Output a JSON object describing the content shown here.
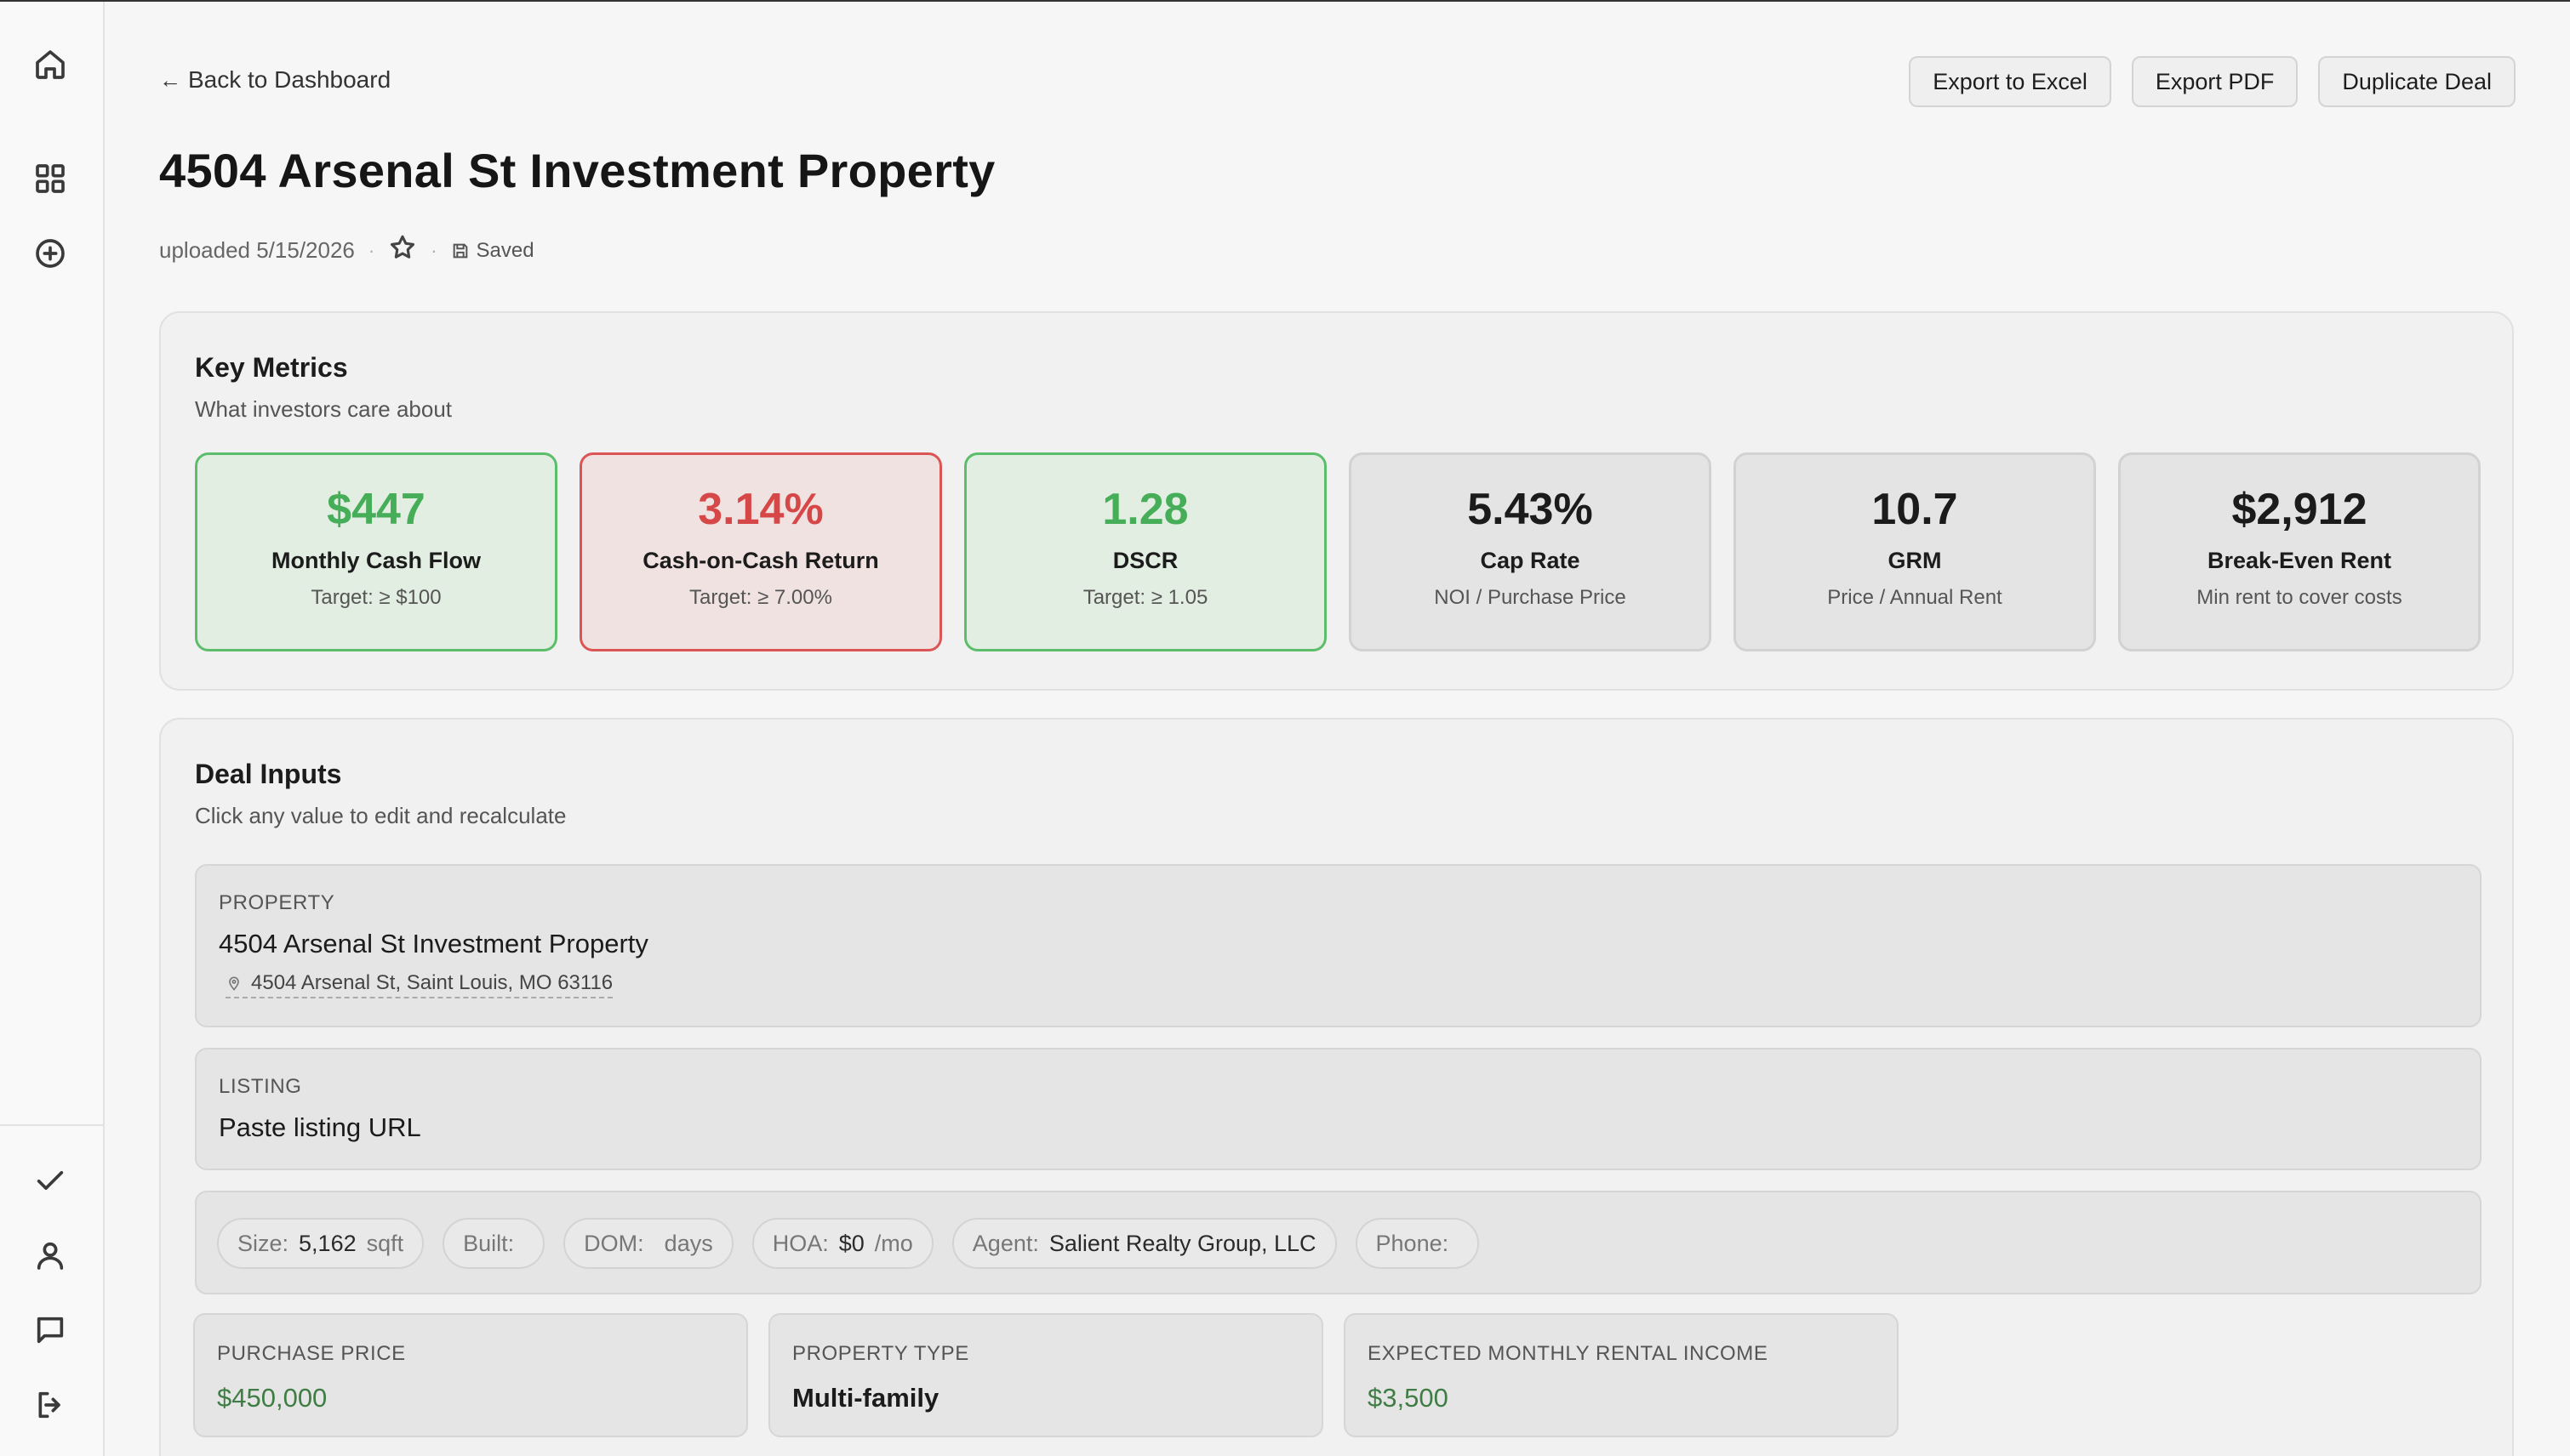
{
  "header": {
    "back_label": "Back to Dashboard",
    "actions": [
      "Export to Excel",
      "Export PDF",
      "Duplicate Deal"
    ],
    "title": "4504 Arsenal St Investment Property",
    "uploaded": "uploaded 5/15/2026",
    "saved": "Saved"
  },
  "sidebar": {
    "top_icons": [
      "home-icon",
      "grid-icon",
      "plus-circle-icon"
    ],
    "bottom_icons": [
      "check-icon",
      "user-icon",
      "message-icon",
      "logout-icon"
    ]
  },
  "key_metrics": {
    "title": "Key Metrics",
    "subtitle": "What investors care about",
    "items": [
      {
        "value": "$447",
        "label": "Monthly Cash Flow",
        "hint": "Target: ≥ $100",
        "status": "good"
      },
      {
        "value": "3.14%",
        "label": "Cash-on-Cash Return",
        "hint": "Target: ≥ 7.00%",
        "status": "bad"
      },
      {
        "value": "1.28",
        "label": "DSCR",
        "hint": "Target: ≥ 1.05",
        "status": "good"
      },
      {
        "value": "5.43%",
        "label": "Cap Rate",
        "hint": "NOI / Purchase Price",
        "status": "neutral"
      },
      {
        "value": "10.7",
        "label": "GRM",
        "hint": "Price / Annual Rent",
        "status": "neutral"
      },
      {
        "value": "$2,912",
        "label": "Break-Even Rent",
        "hint": "Min rent to cover costs",
        "status": "neutral"
      }
    ]
  },
  "deal_inputs": {
    "title": "Deal Inputs",
    "subtitle": "Click any value to edit and recalculate",
    "property": {
      "label": "PROPERTY",
      "name": "4504 Arsenal St Investment Property",
      "address": "4504 Arsenal St, Saint Louis, MO 63116"
    },
    "listing": {
      "label": "LISTING",
      "placeholder": "Paste listing URL"
    },
    "chips": [
      {
        "label": "Size:",
        "value": "5,162",
        "suffix": "sqft"
      },
      {
        "label": "Built:",
        "value": "",
        "suffix": ""
      },
      {
        "label": "DOM:",
        "value": "",
        "suffix": "days"
      },
      {
        "label": "HOA:",
        "value": "$0",
        "suffix": "/mo"
      },
      {
        "label": "Agent:",
        "value": "Salient Realty Group, LLC",
        "suffix": ""
      },
      {
        "label": "Phone:",
        "value": "",
        "suffix": ""
      }
    ],
    "purchase_price": {
      "label": "PURCHASE PRICE",
      "value": "$450,000"
    },
    "property_type": {
      "label": "PROPERTY TYPE",
      "value": "Multi-family"
    },
    "rental_income": {
      "label": "EXPECTED MONTHLY RENTAL INCOME",
      "value": "$3,500"
    }
  },
  "colors": {
    "good": "#46ad58",
    "bad": "#d64848",
    "money_green": "#3f7d45"
  }
}
